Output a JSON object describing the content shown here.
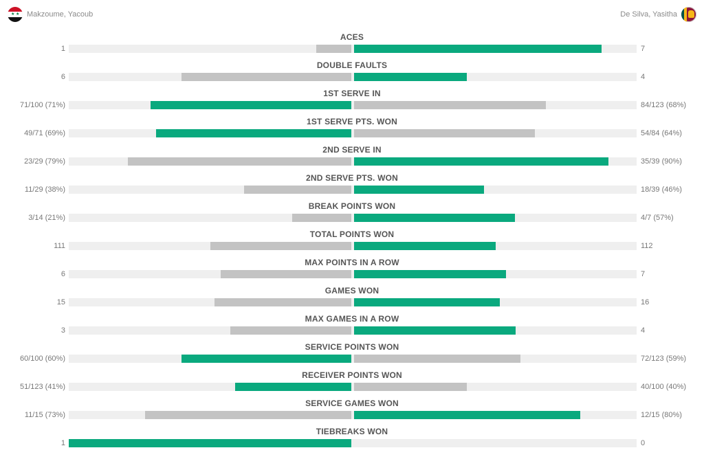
{
  "players": {
    "left": {
      "name": "Makzoume, Yacoub",
      "flag_icon": "syria-flag-icon"
    },
    "right": {
      "name": "De Silva, Yasitha",
      "flag_icon": "sri-lanka-flag-icon"
    }
  },
  "colors": {
    "winner": "#0aa97e",
    "loser": "#c3c3c3",
    "track": "#efefef"
  },
  "stats": [
    {
      "label": "ACES",
      "left": "1",
      "right": "7",
      "left_share": 0.125,
      "right_share": 0.875,
      "leader": "right"
    },
    {
      "label": "DOUBLE FAULTS",
      "left": "6",
      "right": "4",
      "left_share": 0.6,
      "right_share": 0.4,
      "leader": "right"
    },
    {
      "label": "1ST SERVE IN",
      "left": "71/100 (71%)",
      "right": "84/123 (68%)",
      "left_share": 0.71,
      "right_share": 0.68,
      "leader": "left"
    },
    {
      "label": "1ST SERVE PTS. WON",
      "left": "49/71 (69%)",
      "right": "54/84 (64%)",
      "left_share": 0.69,
      "right_share": 0.64,
      "leader": "left"
    },
    {
      "label": "2ND SERVE IN",
      "left": "23/29 (79%)",
      "right": "35/39 (90%)",
      "left_share": 0.79,
      "right_share": 0.9,
      "leader": "right"
    },
    {
      "label": "2ND SERVE PTS. WON",
      "left": "11/29 (38%)",
      "right": "18/39 (46%)",
      "left_share": 0.38,
      "right_share": 0.46,
      "leader": "right"
    },
    {
      "label": "BREAK POINTS WON",
      "left": "3/14 (21%)",
      "right": "4/7 (57%)",
      "left_share": 0.21,
      "right_share": 0.57,
      "leader": "right"
    },
    {
      "label": "TOTAL POINTS WON",
      "left": "111",
      "right": "112",
      "left_share": 0.498,
      "right_share": 0.502,
      "leader": "right"
    },
    {
      "label": "MAX POINTS IN A ROW",
      "left": "6",
      "right": "7",
      "left_share": 0.462,
      "right_share": 0.538,
      "leader": "right"
    },
    {
      "label": "GAMES WON",
      "left": "15",
      "right": "16",
      "left_share": 0.484,
      "right_share": 0.516,
      "leader": "right"
    },
    {
      "label": "MAX GAMES IN A ROW",
      "left": "3",
      "right": "4",
      "left_share": 0.429,
      "right_share": 0.571,
      "leader": "right"
    },
    {
      "label": "SERVICE POINTS WON",
      "left": "60/100 (60%)",
      "right": "72/123 (59%)",
      "left_share": 0.6,
      "right_share": 0.59,
      "leader": "left"
    },
    {
      "label": "RECEIVER POINTS WON",
      "left": "51/123 (41%)",
      "right": "40/100 (40%)",
      "left_share": 0.41,
      "right_share": 0.4,
      "leader": "left"
    },
    {
      "label": "SERVICE GAMES WON",
      "left": "11/15 (73%)",
      "right": "12/15 (80%)",
      "left_share": 0.73,
      "right_share": 0.8,
      "leader": "right"
    },
    {
      "label": "TIEBREAKS WON",
      "left": "1",
      "right": "0",
      "left_share": 1.0,
      "right_share": 0.0,
      "leader": "left"
    }
  ]
}
